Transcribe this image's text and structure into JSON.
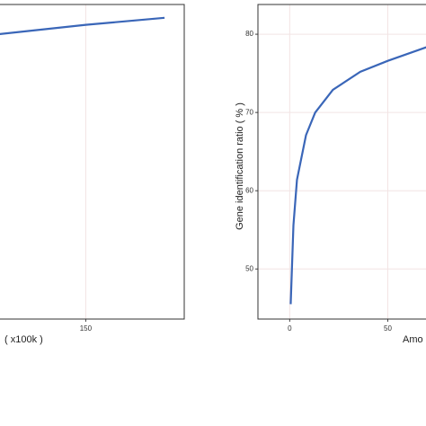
{
  "chart_data": [
    {
      "type": "line",
      "xlabel": "( x100k )",
      "x": [
        110,
        150,
        186
      ],
      "series": [
        {
          "color": "#3a66b8",
          "values": [
            80.0,
            81.2,
            82.1
          ]
        }
      ],
      "xlim": [
        110,
        195
      ],
      "ylim": [
        43.6,
        83.8
      ],
      "xticks": [
        150
      ],
      "grid": true
    },
    {
      "type": "line",
      "xlabel": "Amo",
      "ylabel": "Gene identification ratio ( % )",
      "x": [
        0.5,
        1.9,
        3.7,
        8.3,
        13,
        22,
        36,
        50,
        70.4
      ],
      "series": [
        {
          "color": "#3a66b8",
          "values": [
            45.5,
            55.6,
            61.4,
            67.1,
            70.0,
            72.9,
            75.2,
            76.6,
            78.4
          ]
        }
      ],
      "xlim": [
        -16.2,
        70.4
      ],
      "ylim": [
        43.6,
        83.8
      ],
      "xticks": [
        0,
        50
      ],
      "yticks": [
        50,
        60,
        70,
        80
      ],
      "grid": true
    }
  ]
}
